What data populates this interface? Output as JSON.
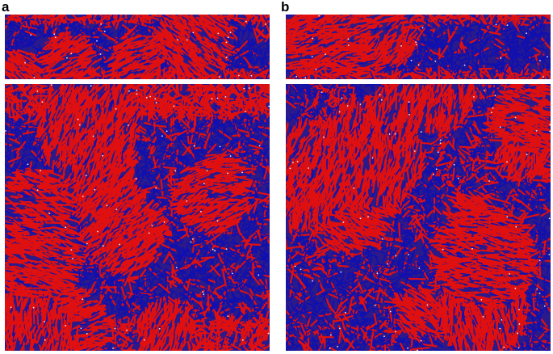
{
  "figure": {
    "panels": [
      {
        "label": "a",
        "colors": {
          "red": "#e01010",
          "blue": "#1010b0"
        }
      },
      {
        "label": "b",
        "colors": {
          "red": "#e01010",
          "blue": "#1010b0"
        }
      }
    ]
  }
}
